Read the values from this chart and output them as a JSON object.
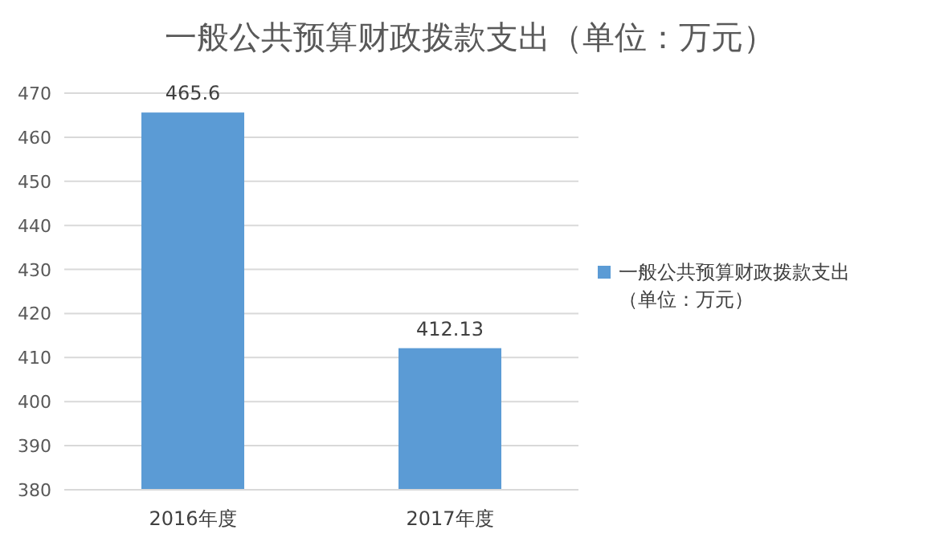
{
  "chart_data": {
    "type": "bar",
    "title": "一般公共预算财政拨款支出（单位：万元）",
    "categories": [
      "2016年度",
      "2017年度"
    ],
    "series": [
      {
        "name": "一般公共预算财政拨款支出（单位：万元）",
        "color": "#5b9bd5",
        "values": [
          465.6,
          412.13
        ]
      }
    ],
    "ylim": [
      380,
      470
    ],
    "yticks": [
      380,
      390,
      400,
      410,
      420,
      430,
      440,
      450,
      460,
      470
    ],
    "grid": "y",
    "legend": "right",
    "data_labels": true
  }
}
